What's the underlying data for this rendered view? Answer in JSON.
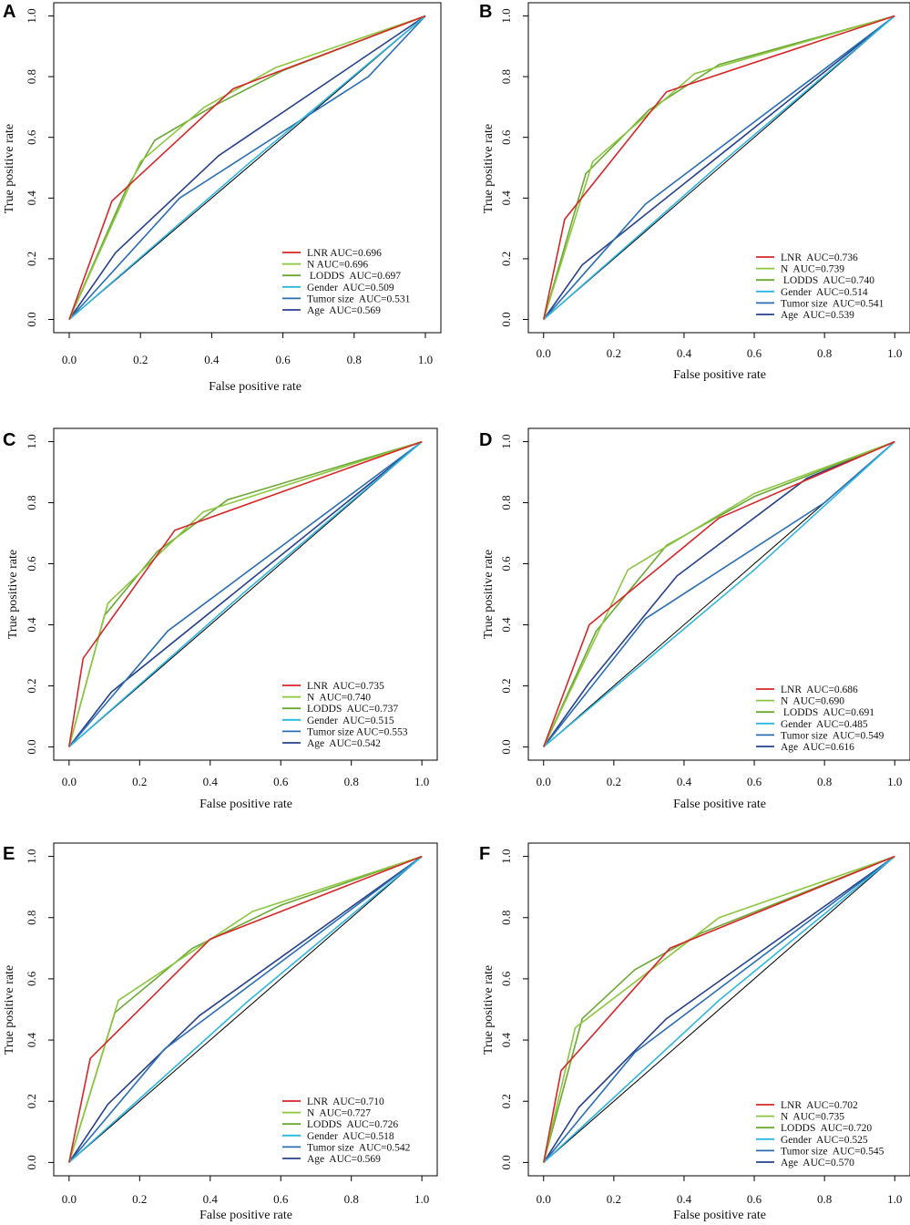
{
  "colors": {
    "LNR": "#d62728",
    "N": "#8cc63f",
    "LODDS": "#6aa832",
    "Gender": "#2fb6e0",
    "Tumor size": "#2a6db2",
    "Age": "#27408b",
    "reference": "#000000"
  },
  "chart_data": [
    {
      "panel": "A",
      "type": "line",
      "xlabel": "False positive rate",
      "ylabel": "True positive rate",
      "xlim": [
        0,
        1
      ],
      "ylim": [
        0,
        1
      ],
      "xticks": [
        "0.0",
        "0.2",
        "0.4",
        "0.6",
        "0.8",
        "1.0"
      ],
      "yticks": [
        "0.0",
        "0.2",
        "0.4",
        "0.6",
        "0.8",
        "1.0"
      ],
      "legend_position": "bottom-right",
      "series": [
        {
          "name": "LNR",
          "label": "LNR AUC=0.696",
          "x": [
            0,
            0.12,
            0.46,
            1
          ],
          "y": [
            0,
            0.39,
            0.76,
            1
          ]
        },
        {
          "name": "N",
          "label": "N AUC=0.696",
          "x": [
            0,
            0.2,
            0.38,
            0.58,
            1
          ],
          "y": [
            0,
            0.52,
            0.7,
            0.83,
            1
          ]
        },
        {
          "name": "LODDS",
          "label": " LODDS  AUC=0.697",
          "x": [
            0,
            0.16,
            0.24,
            0.4,
            0.6,
            1
          ],
          "y": [
            0,
            0.43,
            0.59,
            0.7,
            0.82,
            1
          ]
        },
        {
          "name": "Gender",
          "label": "Gender  AUC=0.509",
          "x": [
            0,
            0.5,
            1
          ],
          "y": [
            0,
            0.51,
            1
          ]
        },
        {
          "name": "Tumor size",
          "label": "Tumor size  AUC=0.531",
          "x": [
            0,
            0.31,
            0.84,
            1
          ],
          "y": [
            0,
            0.4,
            0.8,
            1
          ]
        },
        {
          "name": "Age",
          "label": "Age  AUC=0.569",
          "x": [
            0,
            0.13,
            0.42,
            1
          ],
          "y": [
            0,
            0.22,
            0.54,
            1
          ]
        }
      ]
    },
    {
      "panel": "B",
      "type": "line",
      "xlabel": "False positive rate",
      "ylabel": "True positive rate",
      "xlim": [
        0,
        1
      ],
      "ylim": [
        0,
        1
      ],
      "xticks": [
        "0.0",
        "0.2",
        "0.4",
        "0.6",
        "0.8",
        "1.0"
      ],
      "yticks": [
        "0.0",
        "0.2",
        "0.4",
        "0.6",
        "0.8",
        "1.0"
      ],
      "legend_position": "bottom-right",
      "series": [
        {
          "name": "LNR",
          "label": "LNR  AUC=0.736",
          "x": [
            0,
            0.06,
            0.35,
            1
          ],
          "y": [
            0,
            0.33,
            0.75,
            1
          ]
        },
        {
          "name": "N",
          "label": "N  AUC=0.739",
          "x": [
            0,
            0.14,
            0.43,
            1
          ],
          "y": [
            0,
            0.52,
            0.81,
            1
          ]
        },
        {
          "name": "LODDS",
          "label": " LODDS  AUC=0.740",
          "x": [
            0,
            0.12,
            0.3,
            0.5,
            1
          ],
          "y": [
            0,
            0.48,
            0.69,
            0.84,
            1
          ]
        },
        {
          "name": "Gender",
          "label": "Gender  AUC=0.514",
          "x": [
            0,
            0.5,
            1
          ],
          "y": [
            0,
            0.51,
            1
          ]
        },
        {
          "name": "Tumor size",
          "label": "Tumor size  AUC=0.541",
          "x": [
            0,
            0.29,
            1
          ],
          "y": [
            0,
            0.38,
            1
          ]
        },
        {
          "name": "Age",
          "label": "Age  AUC=0.539",
          "x": [
            0,
            0.11,
            1
          ],
          "y": [
            0,
            0.18,
            1
          ]
        }
      ]
    },
    {
      "panel": "C",
      "type": "line",
      "xlabel": "False positive rate",
      "ylabel": "True positive rate",
      "xlim": [
        0,
        1
      ],
      "ylim": [
        0,
        1
      ],
      "xticks": [
        "0.0",
        "0.2",
        "0.4",
        "0.6",
        "0.8",
        "1.0"
      ],
      "yticks": [
        "0.0",
        "0.2",
        "0.4",
        "0.6",
        "0.8",
        "1.0"
      ],
      "legend_position": "bottom-right",
      "series": [
        {
          "name": "LNR",
          "label": "LNR  AUC=0.735",
          "x": [
            0,
            0.04,
            0.3,
            1
          ],
          "y": [
            0,
            0.29,
            0.71,
            1
          ]
        },
        {
          "name": "N",
          "label": "N  AUC=0.740",
          "x": [
            0,
            0.11,
            0.38,
            1
          ],
          "y": [
            0,
            0.47,
            0.77,
            1
          ]
        },
        {
          "name": "LODDS",
          "label": "LODDS  AUC=0.737",
          "x": [
            0,
            0.1,
            0.25,
            0.45,
            1
          ],
          "y": [
            0,
            0.43,
            0.64,
            0.81,
            1
          ]
        },
        {
          "name": "Gender",
          "label": "Gender  AUC=0.515",
          "x": [
            0,
            0.5,
            1
          ],
          "y": [
            0,
            0.51,
            1
          ]
        },
        {
          "name": "Tumor size",
          "label": "Tumor size AUC=0.553",
          "x": [
            0,
            0.28,
            1
          ],
          "y": [
            0,
            0.38,
            1
          ]
        },
        {
          "name": "Age",
          "label": "Age  AUC=0.542",
          "x": [
            0,
            0.12,
            1
          ],
          "y": [
            0,
            0.18,
            1
          ]
        }
      ]
    },
    {
      "panel": "D",
      "type": "line",
      "xlabel": "False positive rate",
      "ylabel": "True positive rate",
      "xlim": [
        0,
        1
      ],
      "ylim": [
        0,
        1
      ],
      "xticks": [
        "0.0",
        "0.2",
        "0.4",
        "0.6",
        "0.8",
        "1.0"
      ],
      "yticks": [
        "0.0",
        "0.2",
        "0.4",
        "0.6",
        "0.8",
        "1.0"
      ],
      "legend_position": "bottom-right",
      "series": [
        {
          "name": "LNR",
          "label": "LNR  AUC=0.686",
          "x": [
            0,
            0.13,
            0.5,
            1
          ],
          "y": [
            0,
            0.4,
            0.75,
            1
          ]
        },
        {
          "name": "N",
          "label": "N  AUC=0.690",
          "x": [
            0,
            0.24,
            0.6,
            1
          ],
          "y": [
            0,
            0.58,
            0.83,
            1
          ]
        },
        {
          "name": "LODDS",
          "label": " LODDS  AUC=0.691",
          "x": [
            0,
            0.15,
            0.35,
            0.6,
            1
          ],
          "y": [
            0,
            0.38,
            0.66,
            0.82,
            1
          ]
        },
        {
          "name": "Gender",
          "label": "Gender  AUC=0.485",
          "x": [
            0,
            0.6,
            1
          ],
          "y": [
            0,
            0.58,
            1
          ]
        },
        {
          "name": "Tumor size",
          "label": "Tumor size  AUC=0.549",
          "x": [
            0,
            0.29,
            0.8,
            1
          ],
          "y": [
            0,
            0.42,
            0.8,
            1
          ]
        },
        {
          "name": "Age",
          "label": "Age  AUC=0.616",
          "x": [
            0,
            0.13,
            0.38,
            0.75,
            1
          ],
          "y": [
            0,
            0.21,
            0.56,
            0.88,
            1
          ]
        }
      ]
    },
    {
      "panel": "E",
      "type": "line",
      "xlabel": "False positive rate",
      "ylabel": "True positive rate",
      "xlim": [
        0,
        1
      ],
      "ylim": [
        0,
        1
      ],
      "xticks": [
        "0.0",
        "0.2",
        "0.4",
        "0.6",
        "0.8",
        "1.0"
      ],
      "yticks": [
        "0.0",
        "0.2",
        "0.4",
        "0.6",
        "0.8",
        "1.0"
      ],
      "legend_position": "bottom-right",
      "series": [
        {
          "name": "LNR",
          "label": "LNR  AUC=0.710",
          "x": [
            0,
            0.06,
            0.4,
            1
          ],
          "y": [
            0,
            0.34,
            0.73,
            1
          ]
        },
        {
          "name": "N",
          "label": "N  AUC=0.727",
          "x": [
            0,
            0.14,
            0.52,
            1
          ],
          "y": [
            0,
            0.53,
            0.82,
            1
          ]
        },
        {
          "name": "LODDS",
          "label": "LODDS  AUC=0.726",
          "x": [
            0,
            0.13,
            0.35,
            0.6,
            1
          ],
          "y": [
            0,
            0.49,
            0.7,
            0.84,
            1
          ]
        },
        {
          "name": "Gender",
          "label": "Gender  AUC=0.518",
          "x": [
            0,
            0.5,
            1
          ],
          "y": [
            0,
            0.52,
            1
          ]
        },
        {
          "name": "Tumor size",
          "label": "Tumor size  AUC=0.542",
          "x": [
            0,
            0.27,
            1
          ],
          "y": [
            0,
            0.37,
            1
          ]
        },
        {
          "name": "Age",
          "label": "Age  AUC=0.569",
          "x": [
            0,
            0.11,
            0.37,
            1
          ],
          "y": [
            0,
            0.19,
            0.48,
            1
          ]
        }
      ]
    },
    {
      "panel": "F",
      "type": "line",
      "xlabel": "False positive rate",
      "ylabel": "True positive rate",
      "xlim": [
        0,
        1
      ],
      "ylim": [
        0,
        1
      ],
      "xticks": [
        "0.0",
        "0.2",
        "0.4",
        "0.6",
        "0.8",
        "1.0"
      ],
      "yticks": [
        "0.0",
        "0.2",
        "0.4",
        "0.6",
        "0.8",
        "1.0"
      ],
      "legend_position": "bottom-right",
      "series": [
        {
          "name": "LNR",
          "label": "LNR  AUC=0.702",
          "x": [
            0,
            0.05,
            0.36,
            1
          ],
          "y": [
            0,
            0.3,
            0.7,
            1
          ]
        },
        {
          "name": "N",
          "label": "N  AUC=0.735",
          "x": [
            0,
            0.09,
            0.5,
            1
          ],
          "y": [
            0,
            0.44,
            0.8,
            1
          ]
        },
        {
          "name": "LODDS",
          "label": "LODDS  AUC=0.720",
          "x": [
            0,
            0.11,
            0.26,
            0.45,
            1
          ],
          "y": [
            0,
            0.47,
            0.63,
            0.75,
            1
          ]
        },
        {
          "name": "Gender",
          "label": "Gender  AUC=0.525",
          "x": [
            0,
            0.5,
            1
          ],
          "y": [
            0,
            0.53,
            1
          ]
        },
        {
          "name": "Tumor size",
          "label": "Tumor size  AUC=0.545",
          "x": [
            0,
            0.26,
            1
          ],
          "y": [
            0,
            0.36,
            1
          ]
        },
        {
          "name": "Age",
          "label": "Age  AUC=0.570",
          "x": [
            0,
            0.1,
            0.35,
            1
          ],
          "y": [
            0,
            0.18,
            0.47,
            1
          ]
        }
      ]
    }
  ]
}
